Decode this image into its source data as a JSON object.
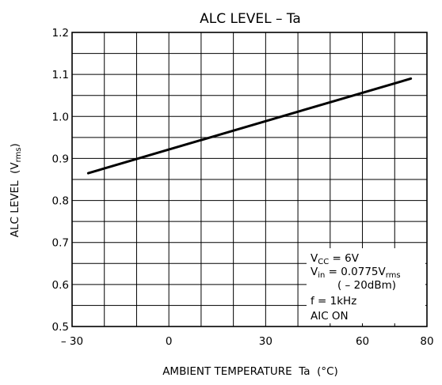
{
  "chart_data": {
    "type": "line",
    "title": "ALC LEVEL  –  Ta",
    "xlabel": "AMBIENT TEMPERATURE  Ta  (°C)",
    "ylabel": "ALC LEVEL  (V",
    "ylabel_sub": "rms",
    "ylabel_close": ")",
    "xlim": [
      -30,
      80
    ],
    "ylim": [
      0.5,
      1.2
    ],
    "x_ticks": [
      -30,
      0,
      30,
      60,
      80
    ],
    "x_tick_labels": [
      "– 30",
      "0",
      "30",
      "60",
      "80"
    ],
    "y_ticks": [
      0.5,
      0.6,
      0.7,
      0.8,
      0.9,
      1.0,
      1.1,
      1.2
    ],
    "y_tick_labels": [
      "0.5",
      "0.6",
      "0.7",
      "0.8",
      "0.9",
      "1.0",
      "1.1",
      "1.2"
    ],
    "x_grid": [
      -30,
      -20,
      -10,
      0,
      10,
      20,
      30,
      40,
      50,
      60,
      70,
      80
    ],
    "y_grid": [
      0.5,
      0.55,
      0.6,
      0.65,
      0.7,
      0.75,
      0.8,
      0.85,
      0.9,
      0.95,
      1.0,
      1.05,
      1.1,
      1.15,
      1.2
    ],
    "grid": true,
    "series": [
      {
        "x": [
          -25,
          75
        ],
        "y": [
          0.865,
          1.09
        ]
      }
    ],
    "conditions": {
      "vcc_main": "V",
      "vcc_sub": "CC",
      "vcc_value": " = 6V",
      "vin_main": "V",
      "vin_sub": "in",
      "vin_value": " = 0.0775V",
      "vin_unit_sub": "rms",
      "dbm": "( – 20dBm)",
      "freq": "f = 1kHz",
      "aic": "AIC ON"
    }
  }
}
